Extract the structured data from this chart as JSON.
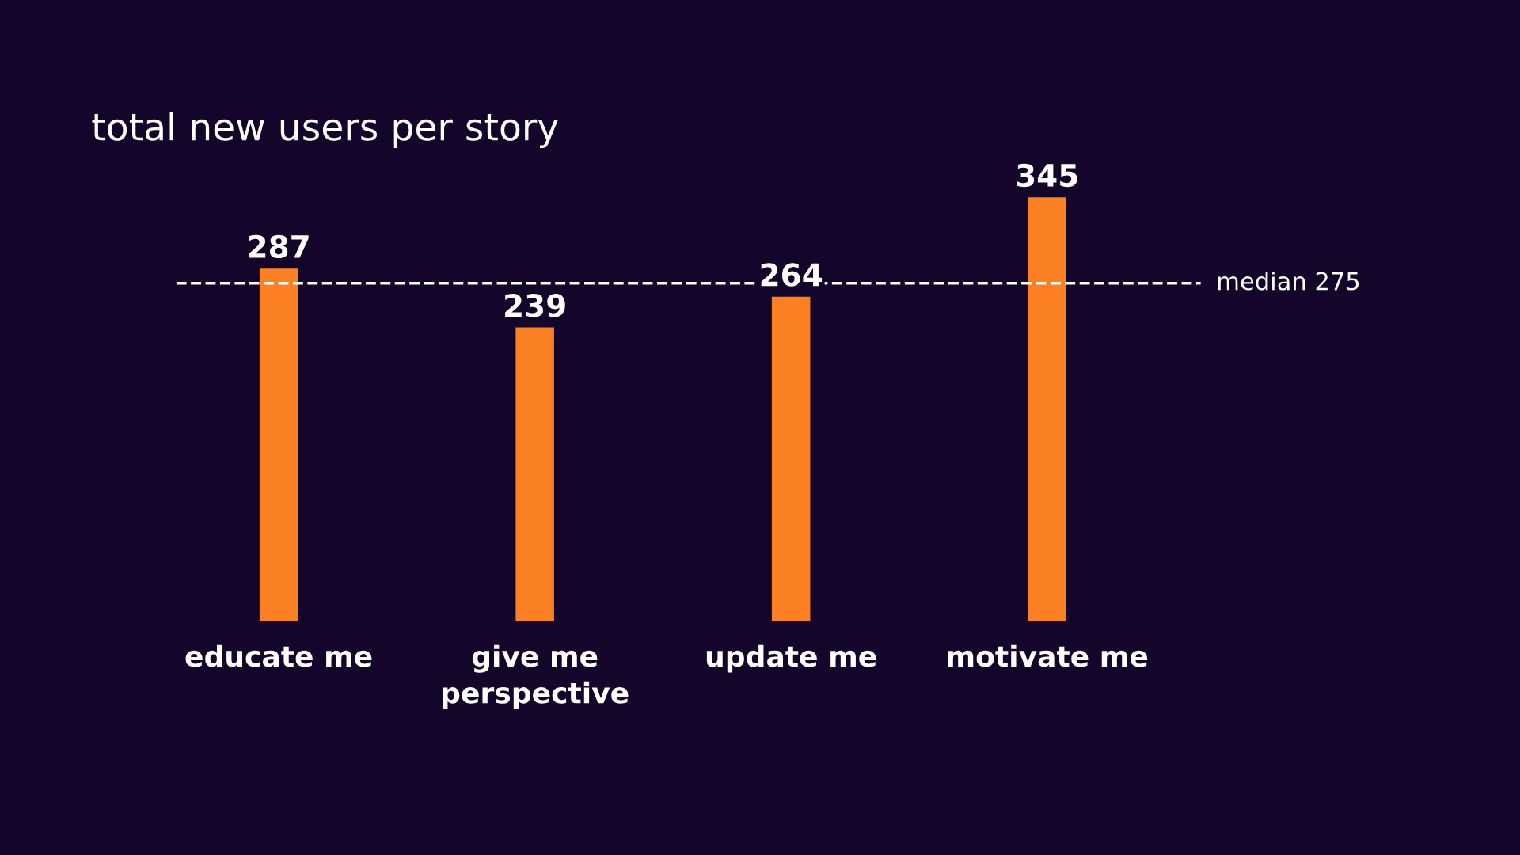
{
  "chart_data": {
    "type": "bar",
    "title": "total new users per story",
    "categories": [
      "educate me",
      "give me\nperspective",
      "update me",
      "motivate me"
    ],
    "values": [
      287,
      239,
      264,
      345
    ],
    "color": "#fb8024",
    "data_labels": true,
    "grid": false,
    "legend": false,
    "ref_lines": [
      {
        "axis": "y",
        "value": 275,
        "label": "median 275",
        "color": "#ffffff",
        "line_style": "dashed"
      }
    ]
  }
}
